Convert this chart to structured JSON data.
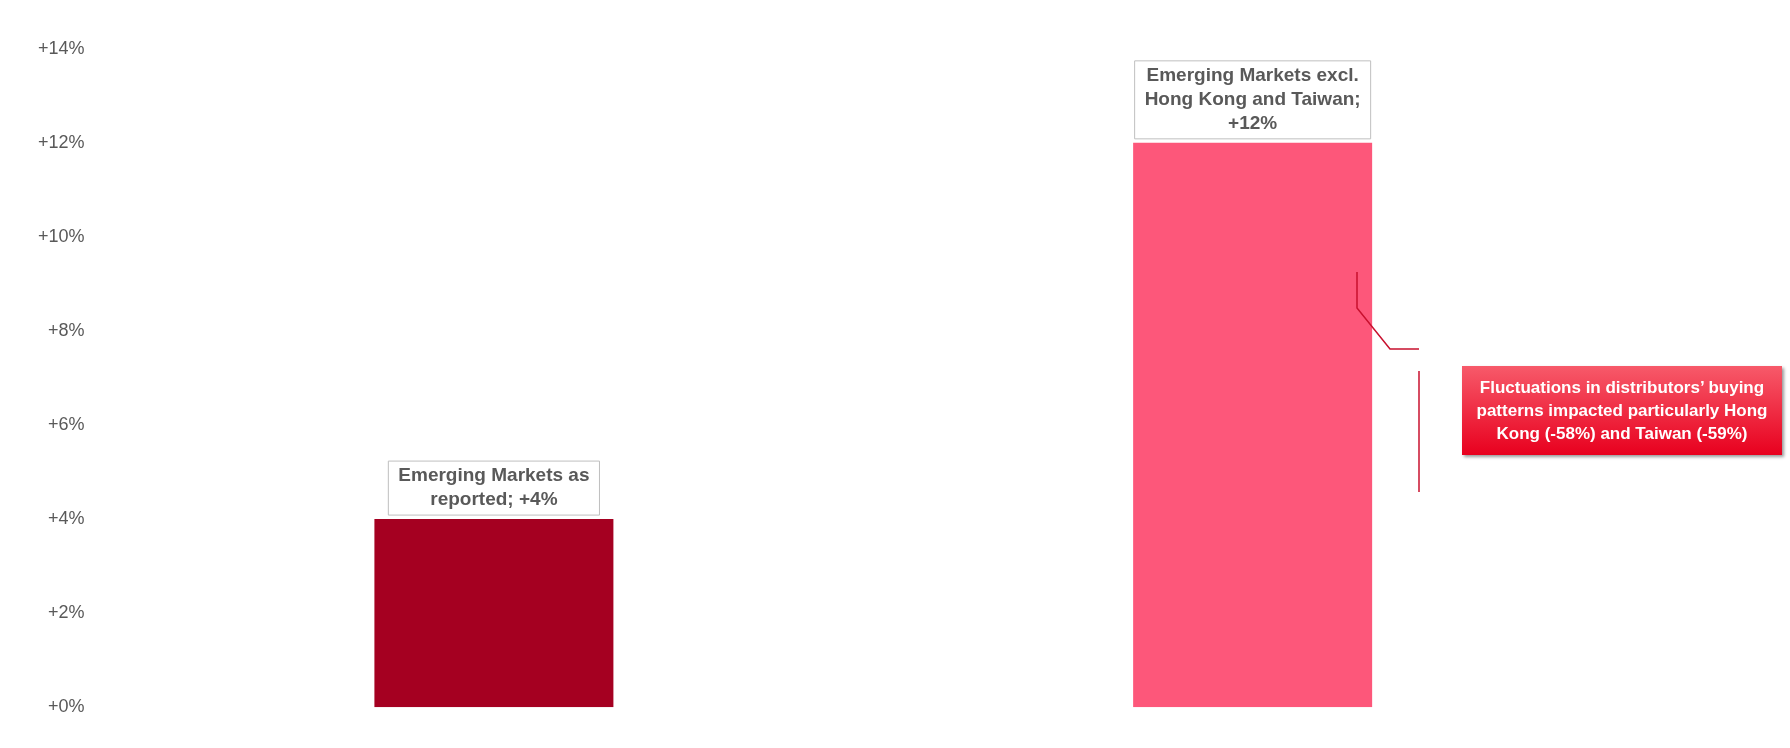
{
  "chart_data": {
    "type": "bar",
    "categories": [
      null,
      null
    ],
    "values": [
      4,
      12
    ],
    "colors": [
      "#a50021",
      "#fd577a"
    ],
    "value_labels": [
      "Emerging Markets as reported; +4%",
      "Emerging Markets excl. Hong Kong and Taiwan; +12%"
    ],
    "ylim": [
      0,
      14
    ],
    "yticks": [
      {
        "value": 0,
        "label": "+0%"
      },
      {
        "value": 2,
        "label": "+2%"
      },
      {
        "value": 4,
        "label": "+4%"
      },
      {
        "value": 6,
        "label": "+6%"
      },
      {
        "value": 8,
        "label": "+8%"
      },
      {
        "value": 10,
        "label": "+10%"
      },
      {
        "value": 12,
        "label": "+12%"
      },
      {
        "value": 14,
        "label": "+14%"
      }
    ],
    "grid": false,
    "legend": false,
    "annotations": [
      "Fluctuations in distributors’ buying patterns impacted particularly Hong Kong (-58%) and Taiwan (-59%)"
    ]
  }
}
